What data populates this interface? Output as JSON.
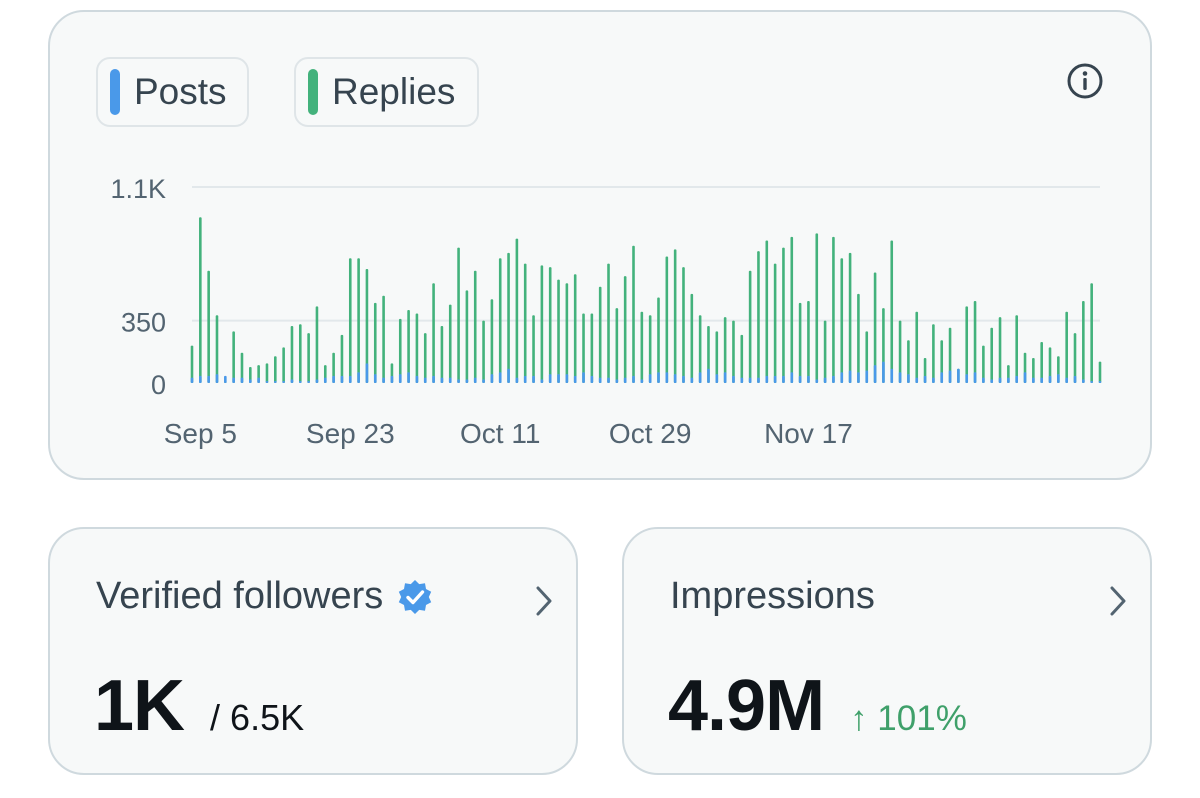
{
  "legend": {
    "posts_label": "Posts",
    "replies_label": "Replies"
  },
  "icons": {
    "info": "info-icon",
    "verified": "verified-badge-icon",
    "chevron": "chevron-right-icon"
  },
  "colors": {
    "posts": "#4a99e9",
    "replies": "#43b27c",
    "positive": "#3fa06a"
  },
  "chart_data": {
    "type": "bar",
    "ytick_labels": [
      "1.1K",
      "350",
      "0"
    ],
    "yticks": [
      1100,
      350,
      0
    ],
    "ylim": [
      0,
      1100
    ],
    "xtick_labels": [
      "Sep 5",
      "Sep 23",
      "Oct 11",
      "Oct 29",
      "Nov 17"
    ],
    "xtick_days": [
      0,
      18,
      36,
      54,
      73
    ],
    "categories_start": "Sep 4",
    "grid": true,
    "legend_position": "top-left",
    "series": [
      {
        "name": "Posts",
        "values": [
          30,
          40,
          40,
          50,
          40,
          30,
          30,
          20,
          30,
          10,
          10,
          10,
          20,
          10,
          10,
          20,
          30,
          40,
          40,
          40,
          60,
          110,
          50,
          30,
          40,
          50,
          60,
          40,
          30,
          40,
          30,
          30,
          20,
          20,
          30,
          20,
          50,
          60,
          80,
          30,
          40,
          40,
          20,
          50,
          50,
          50,
          40,
          60,
          40,
          30,
          30,
          20,
          30,
          40,
          20,
          50,
          60,
          60,
          50,
          40,
          30,
          60,
          80,
          50,
          60,
          40,
          30,
          30,
          30,
          40,
          40,
          40,
          60,
          40,
          40,
          20,
          30,
          40,
          60,
          70,
          60,
          70,
          100,
          120,
          80,
          60,
          50,
          30,
          40,
          30,
          60,
          70,
          80,
          50,
          60,
          30,
          20,
          30,
          30,
          40,
          60,
          30,
          30,
          40,
          50,
          30,
          40,
          20,
          10,
          10
        ]
      },
      {
        "name": "Replies",
        "values": [
          210,
          930,
          630,
          380,
          10,
          290,
          170,
          90,
          100,
          110,
          150,
          200,
          320,
          330,
          280,
          430,
          100,
          170,
          270,
          700,
          700,
          640,
          450,
          490,
          110,
          360,
          410,
          390,
          280,
          560,
          320,
          440,
          760,
          520,
          630,
          350,
          470,
          700,
          730,
          810,
          670,
          380,
          660,
          650,
          580,
          560,
          610,
          390,
          390,
          540,
          670,
          420,
          600,
          770,
          400,
          380,
          480,
          710,
          750,
          650,
          500,
          380,
          320,
          290,
          370,
          350,
          270,
          630,
          740,
          800,
          670,
          760,
          820,
          450,
          460,
          840,
          350,
          820,
          700,
          730,
          500,
          290,
          620,
          420,
          800,
          350,
          240,
          400,
          140,
          330,
          240,
          310,
          80,
          430,
          460,
          210,
          310,
          370,
          100,
          380,
          170,
          140,
          230,
          200,
          150,
          400,
          280,
          460,
          560,
          120
        ]
      }
    ]
  },
  "followers": {
    "title": "Verified followers",
    "value": "1K",
    "total": "/ 6.5K"
  },
  "impressions": {
    "title": "Impressions",
    "value": "4.9M",
    "delta": "↑ 101%"
  }
}
